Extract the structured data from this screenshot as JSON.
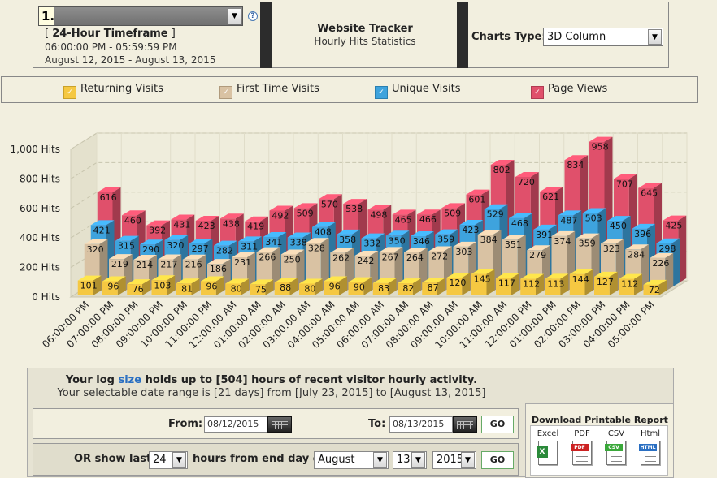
{
  "header": {
    "profile_number": "1.",
    "timeframe_title": "24-Hour Timeframe",
    "time_range": "06:00:00 PM - 05:59:59 PM",
    "date_range": "August 12, 2015 - August 13, 2015",
    "site_title": "Website Tracker",
    "site_subtitle": "Hourly Hits Statistics",
    "charts_type_label": "Charts Type:",
    "charts_type_value": "3D Column",
    "help_glyph": "?"
  },
  "legend": [
    {
      "label": "Returning Visits",
      "color": "#f5c842"
    },
    {
      "label": "First Time Visits",
      "color": "#d9c2a3"
    },
    {
      "label": "Unique Visits",
      "color": "#3ea3dd"
    },
    {
      "label": "Page Views",
      "color": "#e0506b"
    }
  ],
  "chart_data": {
    "type": "bar",
    "style": "3d-column",
    "ylim": [
      0,
      1000
    ],
    "yticks": [
      "0 Hits",
      "200 Hits",
      "400 Hits",
      "600 Hits",
      "800 Hits",
      "1,000 Hits"
    ],
    "categories": [
      "06:00:00 PM",
      "07:00:00 PM",
      "08:00:00 PM",
      "09:00:00 PM",
      "10:00:00 PM",
      "11:00:00 PM",
      "12:00:00 AM",
      "01:00:00 AM",
      "02:00:00 AM",
      "03:00:00 AM",
      "04:00:00 AM",
      "05:00:00 AM",
      "06:00:00 AM",
      "07:00:00 AM",
      "08:00:00 AM",
      "09:00:00 AM",
      "10:00:00 AM",
      "11:00:00 AM",
      "12:00:00 PM",
      "01:00:00 PM",
      "02:00:00 PM",
      "03:00:00 PM",
      "04:00:00 PM",
      "05:00:00 PM"
    ],
    "series": [
      {
        "name": "Page Views",
        "color": "#e0506b",
        "values": [
          616,
          460,
          392,
          431,
          423,
          438,
          419,
          492,
          509,
          570,
          538,
          498,
          465,
          466,
          509,
          601,
          802,
          720,
          621,
          834,
          958,
          707,
          645,
          425
        ]
      },
      {
        "name": "Unique Visits",
        "color": "#3ea3dd",
        "values": [
          421,
          315,
          290,
          320,
          297,
          282,
          311,
          341,
          338,
          408,
          358,
          332,
          350,
          346,
          359,
          423,
          529,
          468,
          391,
          487,
          503,
          450,
          396,
          298
        ]
      },
      {
        "name": "First Time Visits",
        "color": "#d9c2a3",
        "values": [
          320,
          219,
          214,
          217,
          216,
          186,
          231,
          266,
          250,
          328,
          262,
          242,
          267,
          264,
          272,
          303,
          384,
          351,
          279,
          374,
          359,
          323,
          284,
          226
        ]
      },
      {
        "name": "Returning Visits",
        "color": "#f5c842",
        "values": [
          101,
          96,
          76,
          103,
          81,
          96,
          80,
          75,
          88,
          80,
          96,
          90,
          83,
          82,
          87,
          120,
          145,
          117,
          112,
          113,
          144,
          127,
          112,
          72
        ]
      }
    ],
    "grid": true
  },
  "bottom": {
    "info_prefix": "Your log ",
    "info_link": "size",
    "info_suffix": " holds up to [504] hours of recent visitor hourly activity.",
    "info_range": "Your selectable date range is [21 days] from [July 23, 2015] to [August 13, 2015]",
    "from_label": "From:",
    "from_value": "08/12/2015",
    "to_label": "To:",
    "to_value": "08/13/2015",
    "go_label": "GO",
    "last_label": "OR show last",
    "last_hours": "24",
    "hours_label": "hours from end day of",
    "month": "August",
    "day": "13",
    "year": "2015",
    "download_title": "Download Printable Report",
    "downloads": [
      {
        "label": "Excel",
        "tag": "",
        "color": "#2a8a3a"
      },
      {
        "label": "PDF",
        "tag": "PDF",
        "color": "#cc2222"
      },
      {
        "label": "CSV",
        "tag": "CSV",
        "color": "#3aa83a"
      },
      {
        "label": "Html",
        "tag": "HTML",
        "color": "#2a6fc2"
      }
    ]
  }
}
